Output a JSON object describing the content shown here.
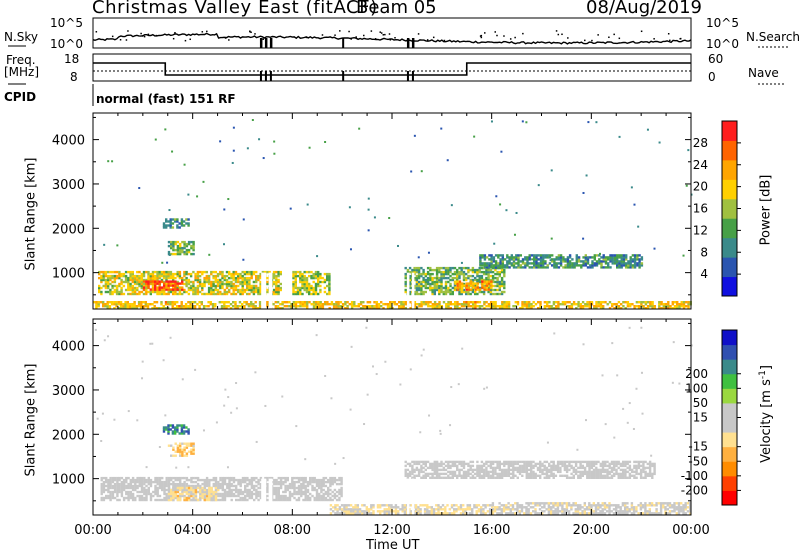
{
  "header": {
    "title": "Christmas Valley East (fitACF)",
    "beam": "Beam 05",
    "date": "08/Aug/2019"
  },
  "noise_panel": {
    "left_label": "N.Sky",
    "left_ticks": [
      "10^5",
      "10^0"
    ],
    "right_label": "N.Search",
    "right_ticks": [
      "10^5",
      "10^0"
    ]
  },
  "freq_panel": {
    "left_label_line1": "Freq.",
    "left_label_line2": "[MHz]",
    "left_ticks": [
      "18",
      "8"
    ],
    "right_label": "Nave",
    "right_ticks": [
      "60",
      "0"
    ]
  },
  "cpid": {
    "label": "CPID",
    "value": "normal (fast) 151 RF"
  },
  "colors": {
    "power_scale": [
      "#1010e0",
      "#2a55b0",
      "#3a8a8a",
      "#47a047",
      "#a0c040",
      "#ffd000",
      "#ffa500",
      "#ff6400",
      "#ff1e1e"
    ],
    "velocity_scale": [
      "#ff0000",
      "#ff4000",
      "#ff8c00",
      "#ffb040",
      "#ffe090",
      "#c8c8c8",
      "#c8c8c8",
      "#9ad840",
      "#40c040",
      "#3a8a8a",
      "#3050b0",
      "#1010c8"
    ]
  },
  "chart_data": [
    {
      "type": "heatmap",
      "panel": "power",
      "xlabel": "",
      "ylabel": "Slant Range [km]",
      "yticks": [
        "1000",
        "2000",
        "3000",
        "4000"
      ],
      "ylim": [
        180,
        4600
      ],
      "xlim_hours": [
        0,
        24
      ],
      "colorbar_label": "Power [dB]",
      "colorbar_ticks": [
        "4",
        "8",
        "12",
        "16",
        "20",
        "24",
        "28"
      ],
      "colorbar_range": [
        0,
        32
      ],
      "echo_regions": [
        {
          "t0": 0.0,
          "t1": 24.0,
          "r0": 180,
          "r1": 350,
          "value": 20
        },
        {
          "t0": 0.2,
          "t1": 7.5,
          "r0": 500,
          "r1": 1000,
          "value": 18
        },
        {
          "t0": 2.0,
          "t1": 3.6,
          "r0": 600,
          "r1": 800,
          "value": 28
        },
        {
          "t0": 2.8,
          "t1": 3.8,
          "r0": 2000,
          "r1": 2200,
          "value": 10
        },
        {
          "t0": 3.0,
          "t1": 4.0,
          "r0": 1400,
          "r1": 1700,
          "value": 14
        },
        {
          "t0": 8.0,
          "t1": 9.5,
          "r0": 500,
          "r1": 1000,
          "value": 16
        },
        {
          "t0": 12.5,
          "t1": 16.5,
          "r0": 500,
          "r1": 1100,
          "value": 14
        },
        {
          "t0": 14.5,
          "t1": 16.0,
          "r0": 600,
          "r1": 800,
          "value": 24
        },
        {
          "t0": 15.5,
          "t1": 22.0,
          "r0": 1100,
          "r1": 1400,
          "value": 10
        }
      ]
    },
    {
      "type": "heatmap",
      "panel": "velocity",
      "xlabel": "Time UT",
      "ylabel": "Slant Range [km]",
      "yticks": [
        "1000",
        "2000",
        "3000",
        "4000"
      ],
      "ylim": [
        180,
        4600
      ],
      "xticks": [
        "00:00",
        "04:00",
        "08:00",
        "12:00",
        "16:00",
        "20:00",
        "00:00"
      ],
      "xlim_hours": [
        0,
        24
      ],
      "colorbar_label": "Velocity [m s^-1]",
      "colorbar_ticks": [
        "-200",
        "-100",
        "-50",
        "-15",
        "15",
        "50",
        "100",
        "200"
      ],
      "colorbar_range": [
        -250,
        250
      ],
      "echo_regions": [
        {
          "t0": 0.3,
          "t1": 10.0,
          "r0": 500,
          "r1": 1000,
          "value": 0
        },
        {
          "t0": 3.0,
          "t1": 5.0,
          "r0": 500,
          "r1": 800,
          "value": -60
        },
        {
          "t0": 2.8,
          "t1": 3.8,
          "r0": 2000,
          "r1": 2200,
          "value": 150
        },
        {
          "t0": 3.0,
          "t1": 4.0,
          "r0": 1500,
          "r1": 1800,
          "value": -70
        },
        {
          "t0": 9.5,
          "t1": 16.0,
          "r0": 200,
          "r1": 400,
          "value": -40
        },
        {
          "t0": 12.5,
          "t1": 22.5,
          "r0": 1000,
          "r1": 1400,
          "value": 0
        },
        {
          "t0": 16.0,
          "t1": 24.0,
          "r0": 200,
          "r1": 450,
          "value": -20
        }
      ]
    }
  ]
}
